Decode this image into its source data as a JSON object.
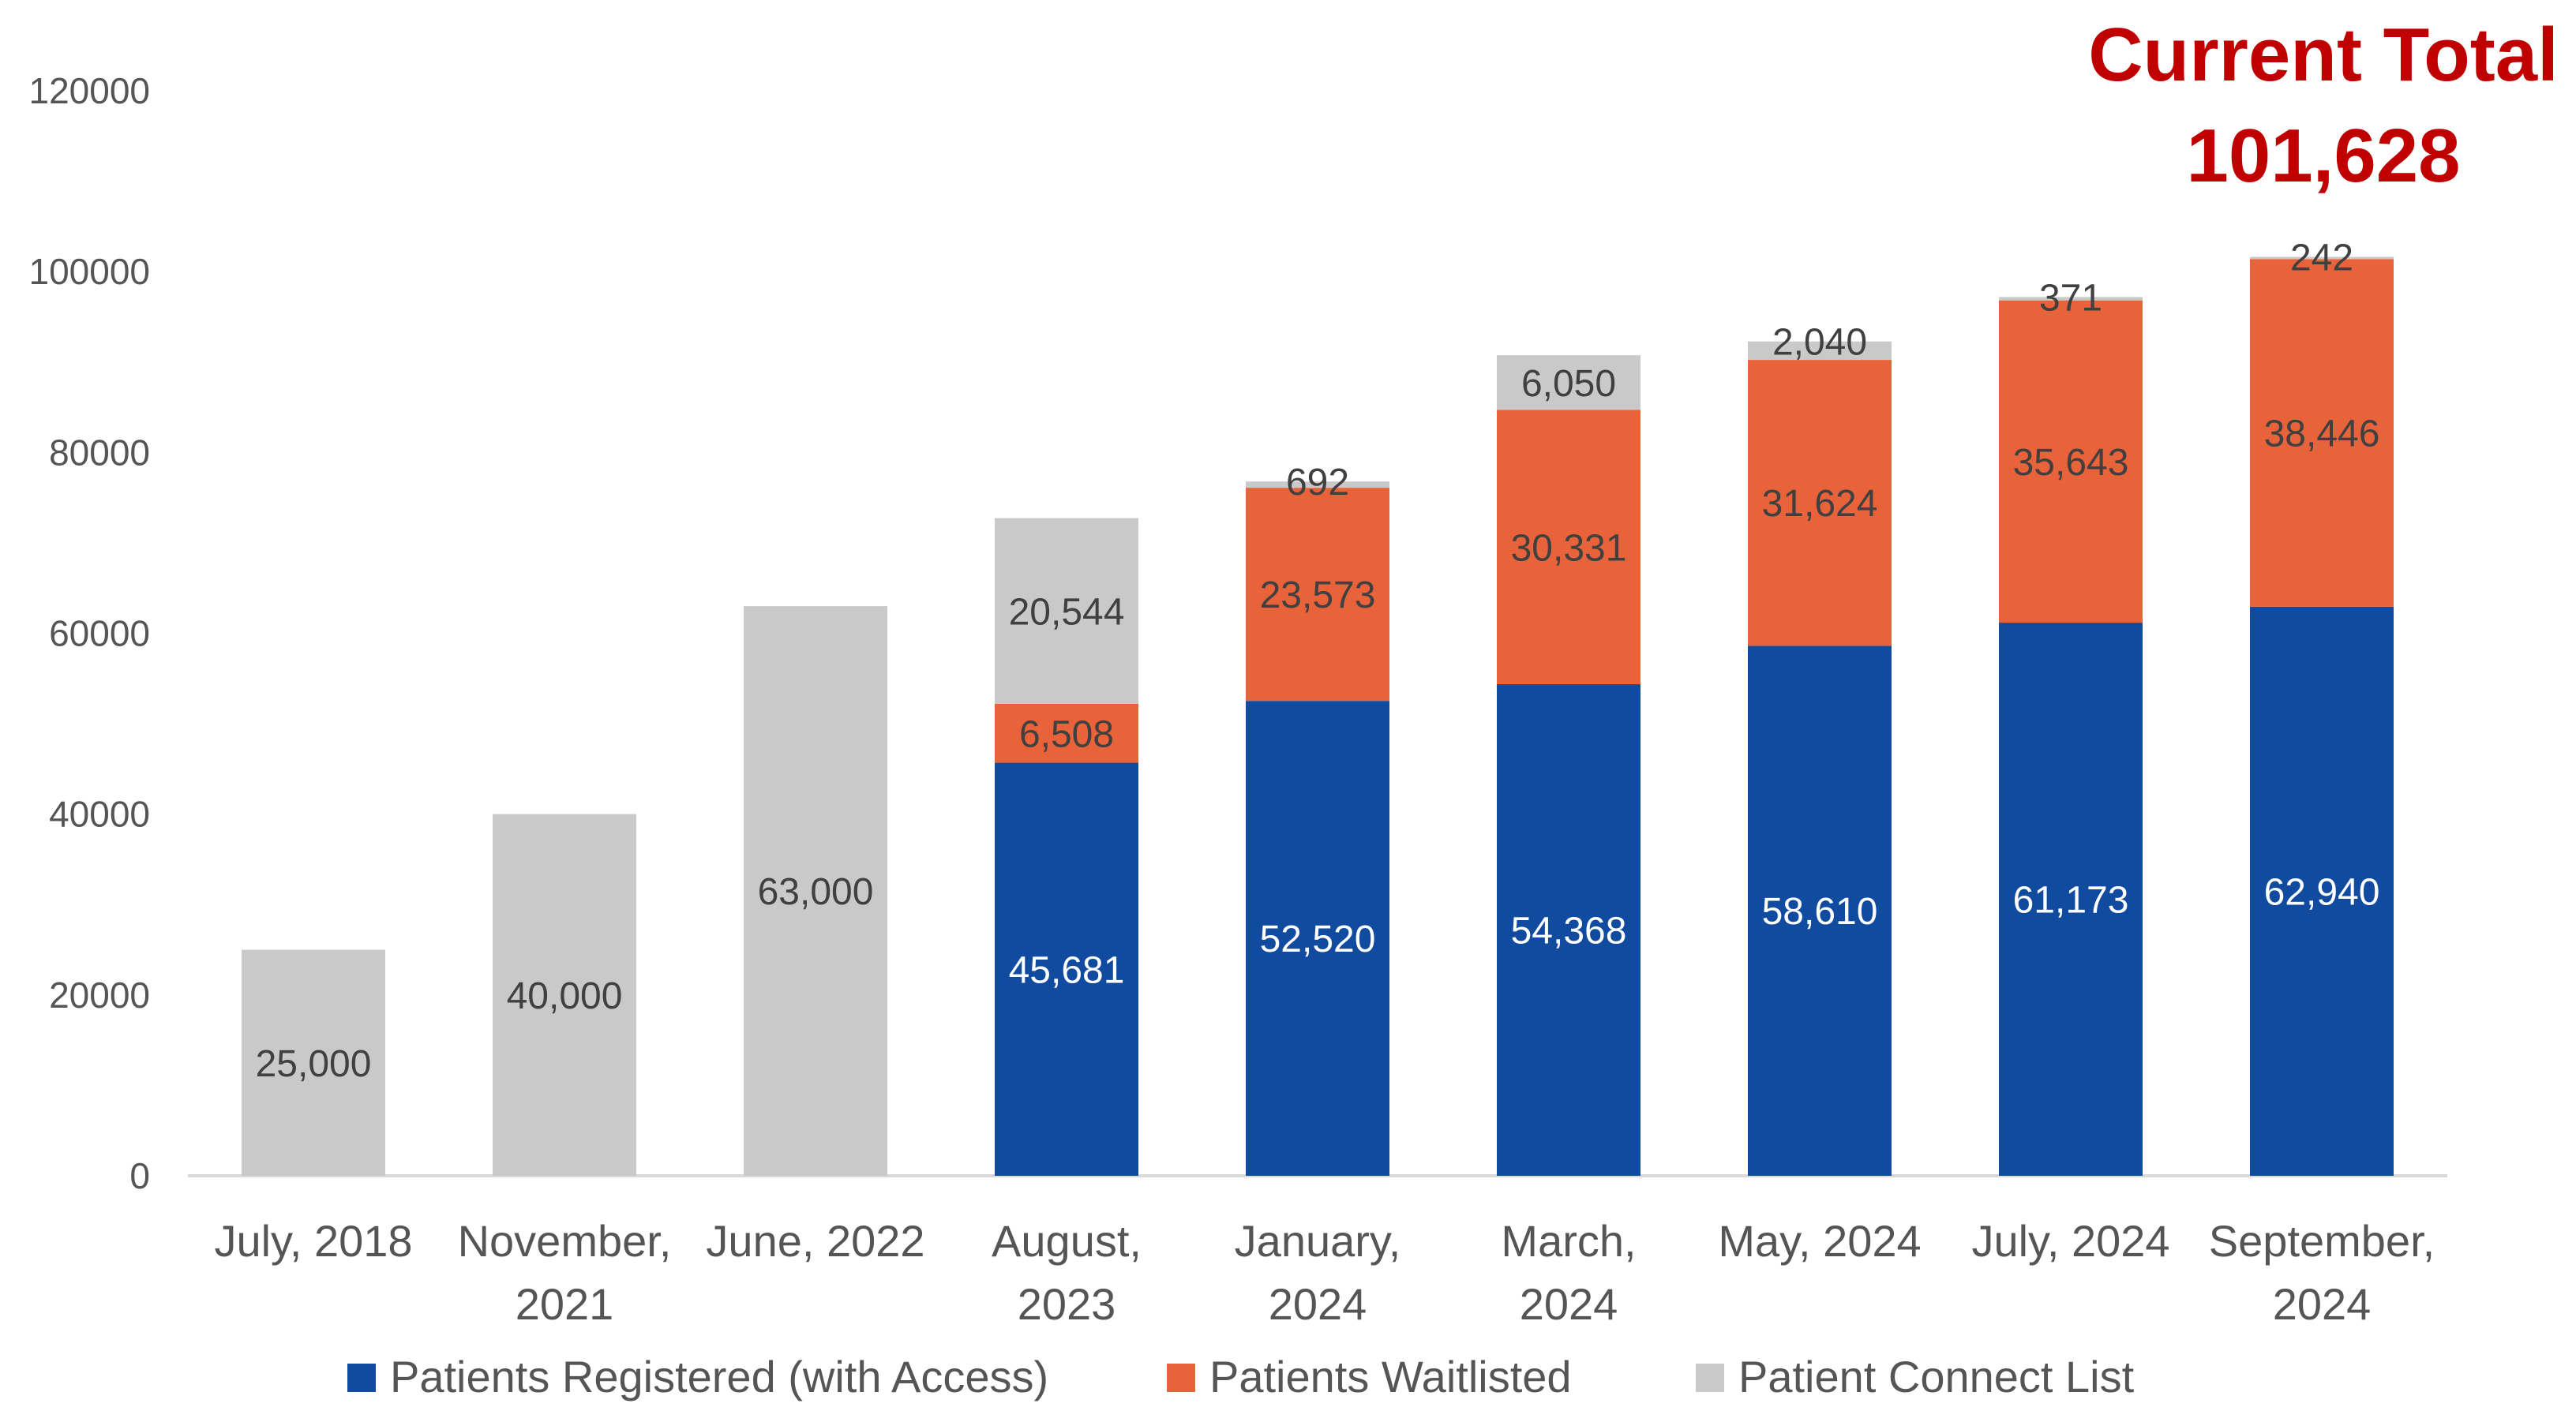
{
  "colors": {
    "registered": "#114B9F",
    "waitlisted": "#E8633A",
    "connect": "#C9C9C9",
    "annotation": "#C00000",
    "axis_text": "#555555",
    "label_dark": "#404040",
    "label_light": "#FFFFFF"
  },
  "annotation": {
    "line1": "Current Total",
    "line2": "101,628"
  },
  "chart_data": {
    "type": "bar",
    "stacked": true,
    "categories": [
      [
        "July, 2018"
      ],
      [
        "November,",
        "2021"
      ],
      [
        "June, 2022"
      ],
      [
        "August,",
        "2023"
      ],
      [
        "January,",
        "2024"
      ],
      [
        "March,",
        "2024"
      ],
      [
        "May, 2024"
      ],
      [
        "July, 2024"
      ],
      [
        "September,",
        "2024"
      ]
    ],
    "series": [
      {
        "name": "Patients Registered (with Access)",
        "color": "#114B9F",
        "values": [
          0,
          0,
          0,
          45681,
          52520,
          54368,
          58610,
          61173,
          62940
        ],
        "labels": [
          "",
          "",
          "",
          "45,681",
          "52,520",
          "54,368",
          "58,610",
          "61,173",
          "62,940"
        ]
      },
      {
        "name": "Patients Waitlisted",
        "color": "#E8633A",
        "values": [
          0,
          0,
          0,
          6508,
          23573,
          30331,
          31624,
          35643,
          38446
        ],
        "labels": [
          "",
          "",
          "",
          "6,508",
          "23,573",
          "30,331",
          "31,624",
          "35,643",
          "38,446"
        ]
      },
      {
        "name": "Patient Connect List",
        "color": "#C9C9C9",
        "values": [
          25000,
          40000,
          63000,
          20544,
          692,
          6050,
          2040,
          371,
          242
        ],
        "labels": [
          "25,000",
          "40,000",
          "63,000",
          "20,544",
          "692",
          "6,050",
          "2,040",
          "371",
          "242"
        ]
      }
    ],
    "y_ticks": [
      "0",
      "20000",
      "40000",
      "60000",
      "80000",
      "100000",
      "120000"
    ],
    "ylim": [
      0,
      120000
    ],
    "grid": false,
    "legend_position": "bottom"
  }
}
